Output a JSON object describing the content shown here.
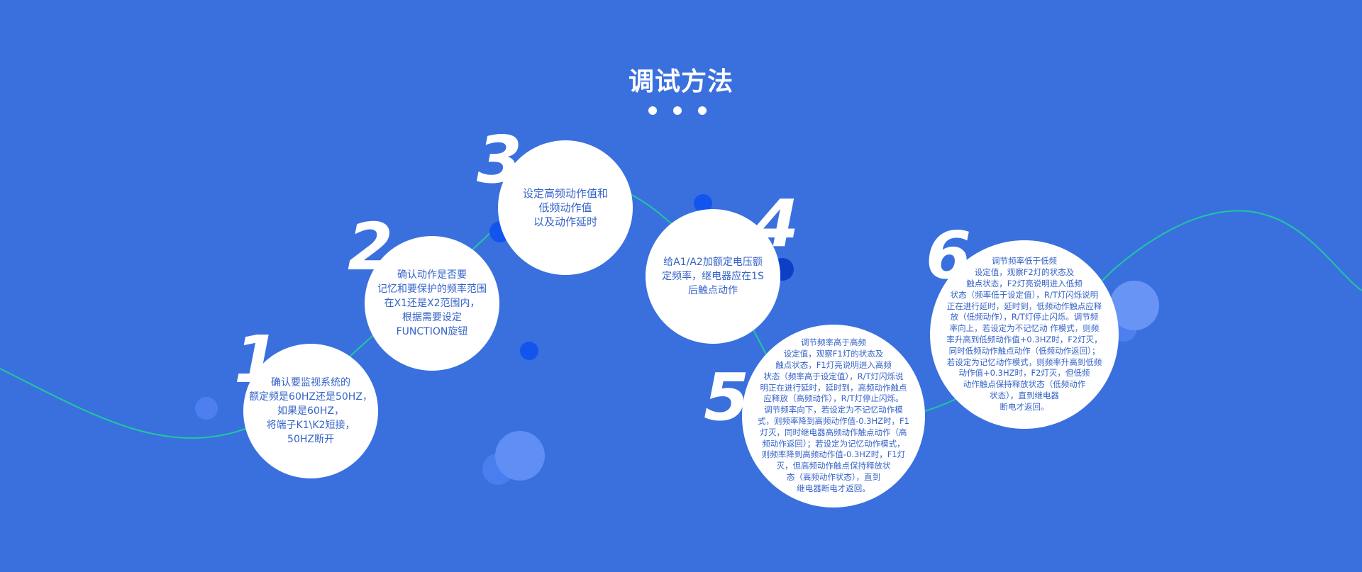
{
  "title": "调试方法",
  "steps": [
    {
      "number": "1",
      "text": "确认要监视系统的\n额定频是60HZ还是50HZ，\n如果是60HZ，\n将端子K1\\K2短接，\n50HZ断开"
    },
    {
      "number": "2",
      "text": "确认动作是否要\n记忆和要保护的频率范围\n在X1还是X2范围内，\n根据需要设定\nFUNCTION旋钮"
    },
    {
      "number": "3",
      "text": "设定高频动作值和\n低频动作值\n以及动作延时"
    },
    {
      "number": "4",
      "text": "给A1/A2加额定电压额\n定频率，继电器应在1S\n后触点动作"
    },
    {
      "number": "5",
      "text": "调节频率高于高频\n设定值，观察F1灯的状态及\n触点状态，F1灯亮说明进入高频\n状态（频率高于设定值），R/T灯闪烁说\n明正在进行延时，延时到，高频动作触点\n应释放（高频动作），R/T灯停止闪烁。\n调节频率向下，若设定为不记忆动作模\n式，则频率降到高频动作值-0.3HZ时，F1\n灯灭，同时继电器高频动作触点动作（高\n频动作返回）；若设定为记忆动作模式，\n则频率降到高频动作值-0.3HZ时，F1灯\n灭，但高频动作触点保持释放状\n态（高频动作状态），直到\n继电器断电才返回。"
    },
    {
      "number": "6",
      "text": "调节频率低于低频\n设定值，观察F2灯的状态及\n触点状态，F2灯亮说明进入低频\n状态（频率低于设定值），R/T灯闪烁说明\n正在进行延时，延时到，低频动作触点应释\n放（低频动作），R/T灯停止闪烁。调节频\n率向上，若设定为不记忆动 作模式，则频\n率升高到低频动作值+0.3HZ时，F2灯灭，\n同时低频动作触点动作（低频动作返回）；\n若设定为记忆动作模式，则频率升高到低频\n动作值+0.3HZ时，F2灯灭，但低频\n动作触点保持释放状态（低频动作\n状态），直到继电器\n断电才返回。"
    }
  ],
  "colors": {
    "background": "#3a70de",
    "curve": "#1fc7a0",
    "circle": "#ffffff",
    "text": "#3563c9",
    "accent_dot": "#1155ee"
  }
}
